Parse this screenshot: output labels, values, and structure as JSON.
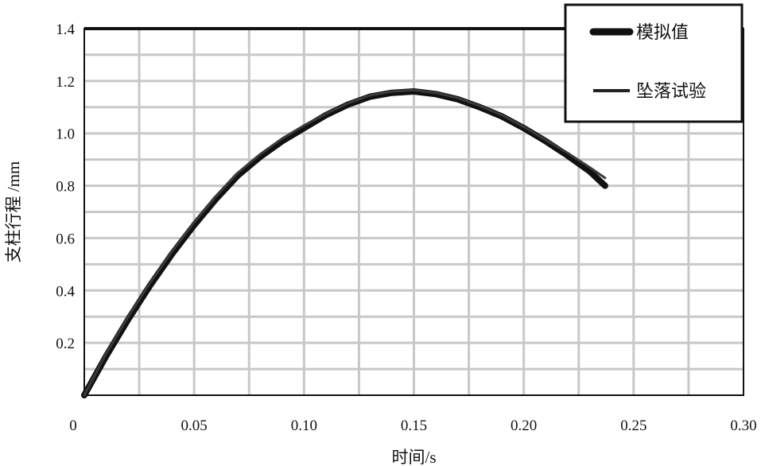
{
  "chart_data": {
    "type": "line",
    "xlabel": "时间/s",
    "ylabel": "支柱行程 /mm",
    "xlim": [
      0,
      0.3
    ],
    "ylim": [
      0,
      1.4
    ],
    "x_ticks": [
      "0",
      "0.05",
      "0.10",
      "0.15",
      "0.20",
      "0.25",
      "0.30"
    ],
    "y_ticks": [
      "0.2",
      "0.4",
      "0.6",
      "0.8",
      "1.0",
      "1.2",
      "1.4"
    ],
    "grid": true,
    "legend_position": "top-right",
    "series": [
      {
        "name": "模拟值",
        "style": "thick",
        "x": [
          0.0,
          0.01,
          0.02,
          0.03,
          0.04,
          0.05,
          0.06,
          0.07,
          0.08,
          0.09,
          0.1,
          0.11,
          0.12,
          0.13,
          0.14,
          0.15,
          0.16,
          0.17,
          0.18,
          0.19,
          0.2,
          0.21,
          0.22,
          0.23,
          0.237
        ],
        "y": [
          0.0,
          0.15,
          0.29,
          0.42,
          0.54,
          0.65,
          0.75,
          0.84,
          0.91,
          0.97,
          1.02,
          1.07,
          1.11,
          1.14,
          1.155,
          1.16,
          1.15,
          1.13,
          1.1,
          1.065,
          1.02,
          0.97,
          0.915,
          0.855,
          0.8
        ]
      },
      {
        "name": "坠落试验",
        "style": "thin",
        "x": [
          0.0,
          0.01,
          0.02,
          0.03,
          0.04,
          0.05,
          0.06,
          0.07,
          0.08,
          0.09,
          0.1,
          0.11,
          0.12,
          0.13,
          0.14,
          0.15,
          0.16,
          0.17,
          0.18,
          0.19,
          0.2,
          0.21,
          0.22,
          0.23,
          0.237
        ],
        "y": [
          0.0,
          0.16,
          0.3,
          0.43,
          0.55,
          0.66,
          0.76,
          0.85,
          0.92,
          0.98,
          1.03,
          1.075,
          1.115,
          1.145,
          1.16,
          1.165,
          1.155,
          1.135,
          1.105,
          1.07,
          1.025,
          0.975,
          0.925,
          0.87,
          0.83
        ]
      }
    ]
  }
}
